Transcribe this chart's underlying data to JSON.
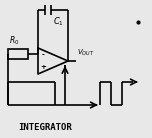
{
  "bg_color": "#e8e8e8",
  "line_color": "#000000",
  "title": "INTEGRATOR",
  "title_fontsize": 6.5,
  "fig_width": 1.52,
  "fig_height": 1.38,
  "dpi": 100
}
